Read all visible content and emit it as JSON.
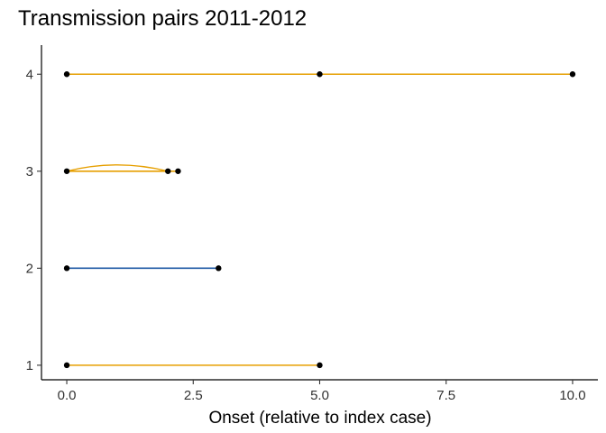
{
  "chart_data": {
    "type": "scatter",
    "title": "Transmission pairs 2011-2012",
    "xlabel": "Onset (relative to index case)",
    "ylabel": "",
    "xlim": [
      -0.5,
      10.5
    ],
    "ylim": [
      0.85,
      4.3
    ],
    "x_ticks": [
      0.0,
      2.5,
      5.0,
      7.5,
      10.0
    ],
    "x_tick_labels": [
      "0.0",
      "2.5",
      "5.0",
      "7.5",
      "10.0"
    ],
    "y_ticks": [
      1,
      2,
      3,
      4
    ],
    "y_tick_labels": [
      "1",
      "2",
      "3",
      "4"
    ],
    "grid": false,
    "colors": {
      "orange": "#E69F00",
      "blue": "#1F5AA6",
      "point": "#000000"
    },
    "segments": [
      {
        "cluster": 1,
        "x_start": 0,
        "x_end": 5,
        "color": "orange",
        "curved": false
      },
      {
        "cluster": 2,
        "x_start": 0,
        "x_end": 3,
        "color": "blue",
        "curved": false
      },
      {
        "cluster": 3,
        "x_start": 0,
        "x_end": 2.2,
        "color": "orange",
        "curved": false
      },
      {
        "cluster": 3,
        "x_start": 0,
        "x_end": 2.0,
        "color": "orange",
        "curved": true
      },
      {
        "cluster": 4,
        "x_start": 0,
        "x_end": 5,
        "color": "orange",
        "curved": false
      },
      {
        "cluster": 4,
        "x_start": 5,
        "x_end": 10,
        "color": "orange",
        "curved": false
      }
    ],
    "points": [
      {
        "cluster": 1,
        "x": 0
      },
      {
        "cluster": 1,
        "x": 5
      },
      {
        "cluster": 2,
        "x": 0
      },
      {
        "cluster": 2,
        "x": 3
      },
      {
        "cluster": 3,
        "x": 0
      },
      {
        "cluster": 3,
        "x": 2.0
      },
      {
        "cluster": 3,
        "x": 2.2
      },
      {
        "cluster": 4,
        "x": 0
      },
      {
        "cluster": 4,
        "x": 5
      },
      {
        "cluster": 4,
        "x": 10
      }
    ]
  }
}
